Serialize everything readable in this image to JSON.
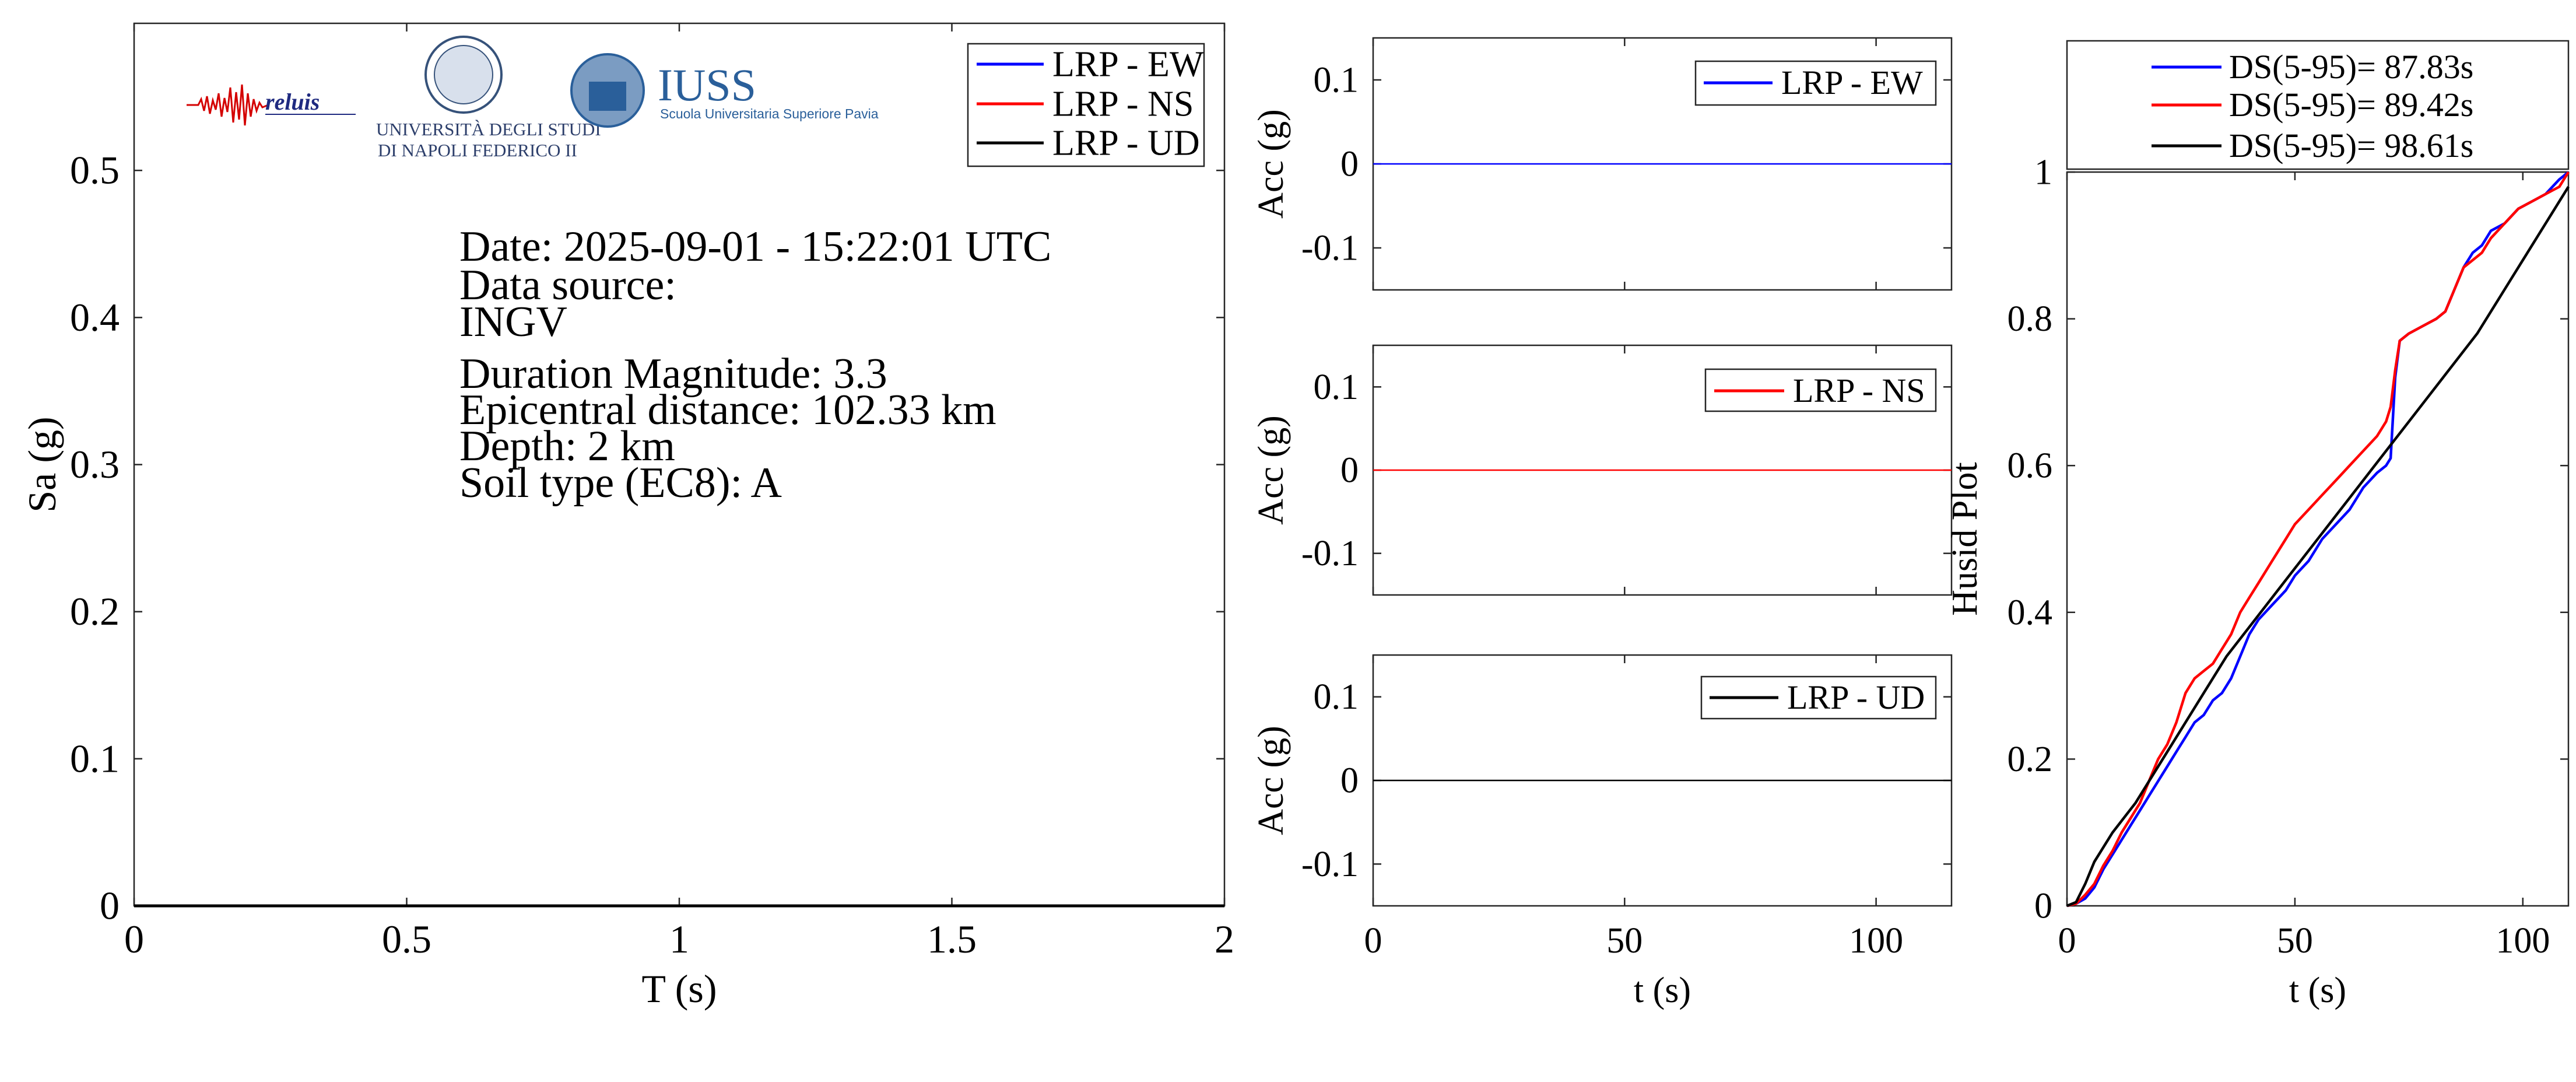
{
  "colors": {
    "ew": "#0000ff",
    "ns": "#ff0000",
    "ud": "#000000",
    "frame": "#262626",
    "background": "#ffffff"
  },
  "logos": {
    "reluis": "reluis",
    "unina": [
      "UNIVERSITÀ DEGLI STUDI",
      "DI NAPOLI FEDERICO II"
    ],
    "iuss_title": "IUSS",
    "iuss_subtitle": "Scuola Universitaria Superiore Pavia"
  },
  "info": {
    "date": "Date: 2025-09-01 - 15:22:01 UTC",
    "source_label": "Data source:",
    "source": "INGV",
    "magnitude": "Duration Magnitude: 3.3",
    "distance": "Epicentral distance: 102.33 km",
    "depth": "Depth: 2 km",
    "soil": "Soil type (EC8): A"
  },
  "chart_data": [
    {
      "id": "spectrum",
      "type": "line",
      "xlabel": "T (s)",
      "ylabel": "Sa (g)",
      "xlim": [
        0,
        2
      ],
      "ylim": [
        0,
        0.6
      ],
      "xticks": [
        0,
        0.5,
        1,
        1.5,
        2
      ],
      "xtick_labels": [
        "0",
        "0.5",
        "1",
        "1.5",
        "2"
      ],
      "yticks": [
        0,
        0.1,
        0.2,
        0.3,
        0.4,
        0.5
      ],
      "ytick_labels": [
        "0",
        "0.1",
        "0.2",
        "0.3",
        "0.4",
        "0.5"
      ],
      "legend_position": "top-right",
      "series": [
        {
          "name": "LRP - EW",
          "color": "#0000ff",
          "x": [
            0,
            2
          ],
          "y": [
            0,
            0
          ]
        },
        {
          "name": "LRP - NS",
          "color": "#ff0000",
          "x": [
            0,
            2
          ],
          "y": [
            0,
            0
          ]
        },
        {
          "name": "LRP - UD",
          "color": "#000000",
          "x": [
            0,
            2
          ],
          "y": [
            0,
            0
          ]
        }
      ]
    },
    {
      "id": "acc_ew",
      "type": "line",
      "xlabel": "",
      "ylabel": "Acc (g)",
      "xlim": [
        0,
        115
      ],
      "ylim": [
        -0.15,
        0.15
      ],
      "yticks": [
        -0.1,
        0,
        0.1
      ],
      "ytick_labels": [
        "-0.1",
        "0",
        "0.1"
      ],
      "xticks": [
        0,
        50,
        100
      ],
      "legend_position": "top-right",
      "series": [
        {
          "name": "LRP - EW",
          "color": "#0000ff",
          "x": [
            0,
            115
          ],
          "y": [
            0,
            0
          ]
        }
      ]
    },
    {
      "id": "acc_ns",
      "type": "line",
      "xlabel": "",
      "ylabel": "Acc (g)",
      "xlim": [
        0,
        115
      ],
      "ylim": [
        -0.15,
        0.15
      ],
      "yticks": [
        -0.1,
        0,
        0.1
      ],
      "ytick_labels": [
        "-0.1",
        "0",
        "0.1"
      ],
      "xticks": [
        0,
        50,
        100
      ],
      "legend_position": "top-right",
      "series": [
        {
          "name": "LRP - NS",
          "color": "#ff0000",
          "x": [
            0,
            115
          ],
          "y": [
            0,
            0
          ]
        }
      ]
    },
    {
      "id": "acc_ud",
      "type": "line",
      "xlabel": "t (s)",
      "ylabel": "Acc (g)",
      "xlim": [
        0,
        115
      ],
      "ylim": [
        -0.15,
        0.15
      ],
      "yticks": [
        -0.1,
        0,
        0.1
      ],
      "ytick_labels": [
        "-0.1",
        "0",
        "0.1"
      ],
      "xticks": [
        0,
        50,
        100
      ],
      "xtick_labels": [
        "0",
        "50",
        "100"
      ],
      "legend_position": "top-right",
      "series": [
        {
          "name": "LRP - UD",
          "color": "#000000",
          "x": [
            0,
            115
          ],
          "y": [
            0,
            0
          ]
        }
      ]
    },
    {
      "id": "husid",
      "type": "line",
      "xlabel": "t (s)",
      "ylabel": "Husid Plot",
      "xlim": [
        0,
        110
      ],
      "ylim": [
        0,
        1
      ],
      "xticks": [
        0,
        50,
        100
      ],
      "xtick_labels": [
        "0",
        "50",
        "100"
      ],
      "yticks": [
        0,
        0.2,
        0.4,
        0.6,
        0.8,
        1
      ],
      "ytick_labels": [
        "0",
        "0.2",
        "0.4",
        "0.6",
        "0.8",
        "1"
      ],
      "legend_position": "top",
      "series": [
        {
          "name": "DS(5-95)= 87.83s",
          "color": "#0000ff",
          "x": [
            0,
            2,
            4,
            6,
            8,
            10,
            12,
            14,
            16,
            18,
            20,
            22,
            24,
            26,
            28,
            30,
            32,
            34,
            36,
            38,
            40,
            42,
            45,
            48,
            50,
            53,
            56,
            59,
            62,
            65,
            68,
            70,
            71,
            72,
            73,
            75,
            78,
            81,
            83,
            85,
            87,
            89,
            91,
            93,
            96,
            99,
            102,
            105,
            108,
            110
          ],
          "y": [
            0,
            0.003,
            0.01,
            0.025,
            0.05,
            0.07,
            0.09,
            0.11,
            0.13,
            0.15,
            0.17,
            0.19,
            0.21,
            0.23,
            0.25,
            0.26,
            0.28,
            0.29,
            0.31,
            0.34,
            0.37,
            0.39,
            0.41,
            0.43,
            0.45,
            0.47,
            0.5,
            0.52,
            0.54,
            0.57,
            0.59,
            0.6,
            0.61,
            0.72,
            0.77,
            0.78,
            0.79,
            0.8,
            0.81,
            0.84,
            0.87,
            0.89,
            0.9,
            0.92,
            0.93,
            0.95,
            0.96,
            0.97,
            0.99,
            1.0
          ]
        },
        {
          "name": "DS(5-95)= 89.42s",
          "color": "#ff0000",
          "x": [
            0,
            2,
            4,
            6,
            8,
            10,
            12,
            14,
            16,
            18,
            20,
            22,
            24,
            26,
            28,
            30,
            32,
            34,
            36,
            38,
            40,
            42,
            45,
            48,
            50,
            53,
            56,
            59,
            62,
            65,
            68,
            70,
            71,
            72,
            73,
            75,
            78,
            81,
            83,
            85,
            87,
            89,
            91,
            93,
            96,
            99,
            102,
            105,
            108,
            110
          ],
          "y": [
            0,
            0.003,
            0.015,
            0.03,
            0.055,
            0.075,
            0.1,
            0.12,
            0.14,
            0.17,
            0.2,
            0.22,
            0.25,
            0.29,
            0.31,
            0.32,
            0.33,
            0.35,
            0.37,
            0.4,
            0.42,
            0.44,
            0.47,
            0.5,
            0.52,
            0.54,
            0.56,
            0.58,
            0.6,
            0.62,
            0.64,
            0.66,
            0.68,
            0.73,
            0.77,
            0.78,
            0.79,
            0.8,
            0.81,
            0.84,
            0.87,
            0.88,
            0.89,
            0.91,
            0.93,
            0.95,
            0.96,
            0.97,
            0.98,
            1.0
          ]
        },
        {
          "name": "DS(5-95)= 98.61s",
          "color": "#000000",
          "x": [
            0,
            2,
            4,
            5,
            6,
            8,
            10,
            15,
            20,
            25,
            30,
            35,
            40,
            45,
            50,
            55,
            60,
            65,
            70,
            75,
            80,
            85,
            90,
            95,
            100,
            105,
            110
          ],
          "y": [
            0,
            0.005,
            0.03,
            0.045,
            0.06,
            0.08,
            0.1,
            0.14,
            0.19,
            0.24,
            0.29,
            0.34,
            0.38,
            0.42,
            0.46,
            0.5,
            0.54,
            0.58,
            0.62,
            0.66,
            0.7,
            0.74,
            0.78,
            0.83,
            0.88,
            0.93,
            0.98
          ]
        }
      ]
    }
  ]
}
